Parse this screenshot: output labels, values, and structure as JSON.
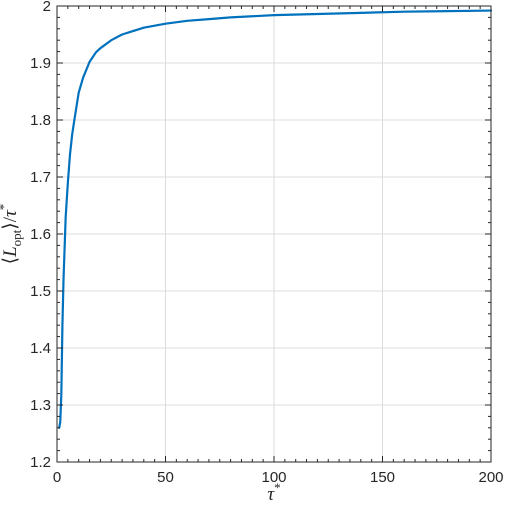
{
  "chart_data": {
    "type": "line",
    "title": "",
    "xlabel": {
      "prefix": "τ",
      "sup": "*"
    },
    "ylabel": {
      "open": "⟨",
      "var": "L",
      "sub": "opt",
      "close": "⟩/",
      "var2": "τ",
      "sup": "*"
    },
    "xlim": [
      0,
      200
    ],
    "ylim": [
      1.2,
      2.0
    ],
    "xticks": [
      0,
      50,
      100,
      150,
      200
    ],
    "yticks": [
      1.2,
      1.3,
      1.4,
      1.5,
      1.6,
      1.7,
      1.8,
      1.9,
      2.0
    ],
    "xtick_labels": [
      "0",
      "50",
      "100",
      "150",
      "200"
    ],
    "ytick_labels": [
      "1.2",
      "1.3",
      "1.4",
      "1.5",
      "1.6",
      "1.7",
      "1.8",
      "1.9",
      "2"
    ],
    "grid": true,
    "series": [
      {
        "color": "#0072BD",
        "x": [
          1,
          1.5,
          2,
          2.5,
          3,
          4,
          5,
          6,
          7,
          8,
          10,
          12,
          15,
          18,
          20,
          25,
          30,
          40,
          50,
          60,
          70,
          80,
          90,
          100,
          120,
          140,
          160,
          180,
          200
        ],
        "y": [
          1.26,
          1.27,
          1.32,
          1.44,
          1.52,
          1.63,
          1.69,
          1.74,
          1.775,
          1.8,
          1.848,
          1.874,
          1.902,
          1.919,
          1.926,
          1.94,
          1.95,
          1.962,
          1.969,
          1.974,
          1.977,
          1.98,
          1.982,
          1.984,
          1.986,
          1.988,
          1.99,
          1.991,
          1.992
        ]
      }
    ]
  }
}
